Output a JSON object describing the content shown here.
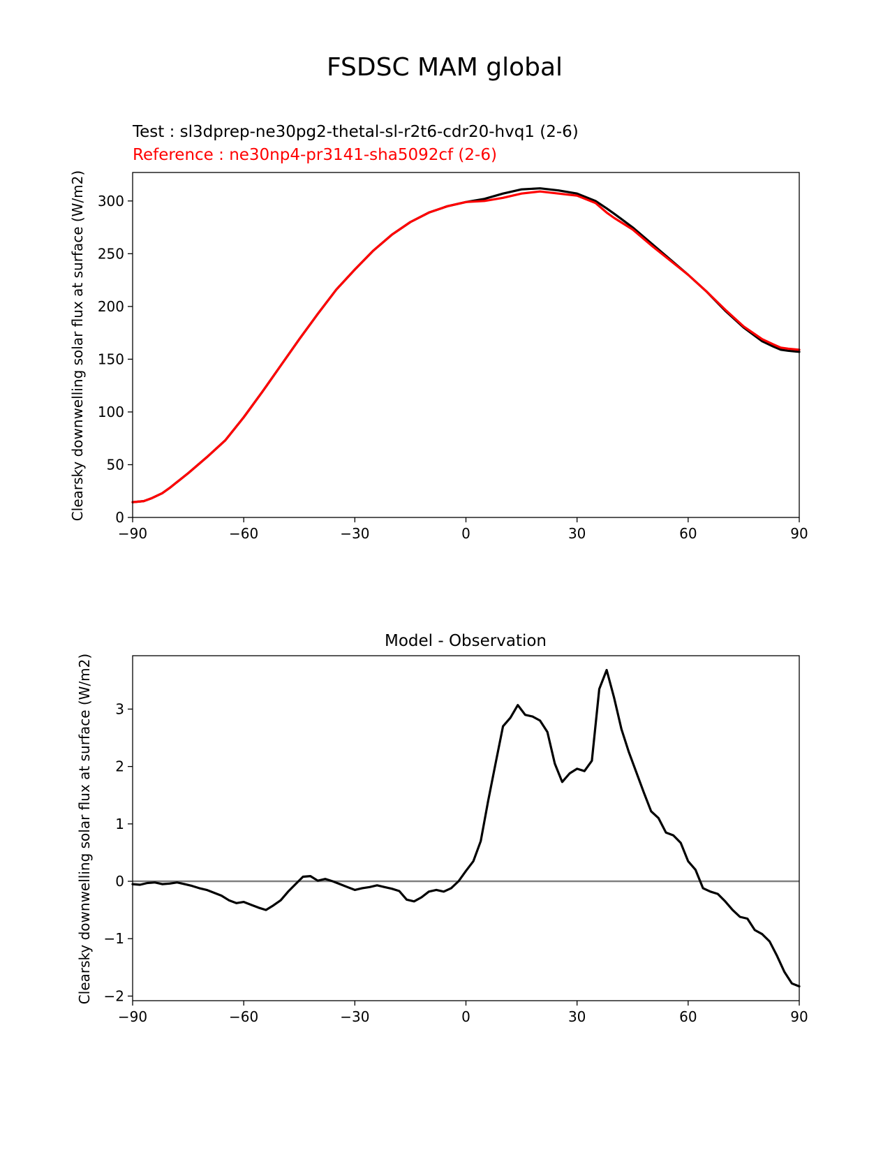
{
  "figure": {
    "title": "FSDSC MAM global"
  },
  "chart_data": [
    {
      "type": "line",
      "subtitle_test": "Test : sl3dprep-ne30pg2-thetal-sl-r2t6-cdr20-hvq1 (2-6)",
      "subtitle_reference": "Reference : ne30np4-pr3141-sha5092cf (2-6)",
      "xlabel": "",
      "ylabel": "Clearsky downwelling solar flux at surface (W/m2)",
      "xlim": [
        -90,
        90
      ],
      "ylim": [
        0,
        327
      ],
      "xticks": [
        "−90",
        "−60",
        "−30",
        "0",
        "30",
        "60",
        "90"
      ],
      "xtick_values": [
        -90,
        -60,
        -30,
        0,
        30,
        60,
        90
      ],
      "yticks": [
        "0",
        "50",
        "100",
        "150",
        "200",
        "250",
        "300"
      ],
      "ytick_values": [
        0,
        50,
        100,
        150,
        200,
        250,
        300
      ],
      "grid": false,
      "series": [
        {
          "name": "Test",
          "color": "#000000",
          "x": [
            -90,
            -87,
            -85,
            -82,
            -80,
            -75,
            -70,
            -65,
            -60,
            -55,
            -50,
            -45,
            -40,
            -35,
            -30,
            -25,
            -20,
            -15,
            -10,
            -5,
            0,
            5,
            10,
            15,
            20,
            25,
            30,
            35,
            38,
            40,
            45,
            50,
            55,
            60,
            65,
            70,
            75,
            80,
            83,
            85,
            87,
            90
          ],
          "y": [
            14.5,
            15.5,
            18,
            23,
            28,
            42,
            57,
            73,
            95,
            119,
            144,
            169,
            193,
            216,
            235,
            253,
            268,
            280,
            289,
            295,
            299,
            302,
            307,
            311,
            312,
            310,
            307,
            300,
            293,
            288,
            275,
            260,
            245,
            230,
            214,
            196,
            180,
            167,
            162,
            159,
            158,
            157
          ]
        },
        {
          "name": "Reference",
          "color": "#ff0000",
          "x": [
            -90,
            -87,
            -85,
            -82,
            -80,
            -75,
            -70,
            -65,
            -60,
            -55,
            -50,
            -45,
            -40,
            -35,
            -30,
            -25,
            -20,
            -15,
            -10,
            -5,
            0,
            5,
            10,
            15,
            20,
            25,
            30,
            35,
            38,
            40,
            45,
            50,
            55,
            60,
            65,
            70,
            75,
            80,
            83,
            85,
            87,
            90
          ],
          "y": [
            14.5,
            15.5,
            18,
            23,
            28,
            42,
            57,
            73,
            95,
            119,
            144,
            169,
            193,
            216,
            235,
            253,
            268,
            280,
            289,
            295,
            299,
            300,
            303,
            307,
            309,
            307,
            305,
            298,
            289,
            284,
            273,
            258,
            244,
            230,
            214,
            197,
            181,
            169,
            164,
            161,
            160,
            159
          ]
        }
      ]
    },
    {
      "type": "line",
      "title": "Model - Observation",
      "xlabel": "",
      "ylabel": "Clearsky downwelling solar flux at surface (W/m2)",
      "xlim": [
        -90,
        90
      ],
      "ylim": [
        -2.08,
        3.93
      ],
      "xticks": [
        "−90",
        "−60",
        "−30",
        "0",
        "30",
        "60",
        "90"
      ],
      "xtick_values": [
        -90,
        -60,
        -30,
        0,
        30,
        60,
        90
      ],
      "yticks": [
        "−2",
        "−1",
        "0",
        "1",
        "2",
        "3"
      ],
      "ytick_values": [
        -2,
        -1,
        0,
        1,
        2,
        3
      ],
      "grid": false,
      "zero_line_color": "#808080",
      "series": [
        {
          "name": "",
          "color": "#000000",
          "x": [
            -90,
            -88,
            -86,
            -84,
            -82,
            -80,
            -78,
            -76,
            -74,
            -72,
            -70,
            -68,
            -66,
            -64,
            -62,
            -60,
            -58,
            -56,
            -54,
            -52,
            -50,
            -48,
            -46,
            -44,
            -42,
            -40,
            -38,
            -36,
            -34,
            -32,
            -30,
            -28,
            -26,
            -24,
            -22,
            -20,
            -18,
            -16,
            -14,
            -12,
            -10,
            -8,
            -6,
            -4,
            -2,
            0,
            2,
            4,
            6,
            8,
            10,
            12,
            14,
            16,
            18,
            20,
            22,
            24,
            26,
            28,
            30,
            32,
            34,
            36,
            38,
            40,
            42,
            44,
            46,
            48,
            50,
            52,
            54,
            56,
            58,
            60,
            62,
            64,
            66,
            68,
            70,
            72,
            74,
            76,
            78,
            80,
            82,
            84,
            86,
            88,
            90
          ],
          "y": [
            -0.05,
            -0.06,
            -0.03,
            -0.02,
            -0.05,
            -0.04,
            -0.02,
            -0.05,
            -0.08,
            -0.12,
            -0.15,
            -0.2,
            -0.25,
            -0.33,
            -0.38,
            -0.36,
            -0.41,
            -0.46,
            -0.5,
            -0.42,
            -0.33,
            -0.18,
            -0.05,
            0.08,
            0.09,
            0.01,
            0.04,
            0.0,
            -0.05,
            -0.1,
            -0.15,
            -0.12,
            -0.1,
            -0.07,
            -0.1,
            -0.13,
            -0.17,
            -0.32,
            -0.35,
            -0.28,
            -0.18,
            -0.15,
            -0.18,
            -0.12,
            0.0,
            0.18,
            0.35,
            0.7,
            1.4,
            2.05,
            2.7,
            2.85,
            3.07,
            2.9,
            2.87,
            2.8,
            2.6,
            2.05,
            1.73,
            1.88,
            1.96,
            1.92,
            2.1,
            3.35,
            3.68,
            3.2,
            2.65,
            2.25,
            1.9,
            1.55,
            1.22,
            1.1,
            0.85,
            0.8,
            0.67,
            0.35,
            0.2,
            -0.12,
            -0.18,
            -0.22,
            -0.35,
            -0.5,
            -0.62,
            -0.65,
            -0.85,
            -0.92,
            -1.05,
            -1.3,
            -1.58,
            -1.78,
            -1.83
          ]
        }
      ]
    }
  ]
}
